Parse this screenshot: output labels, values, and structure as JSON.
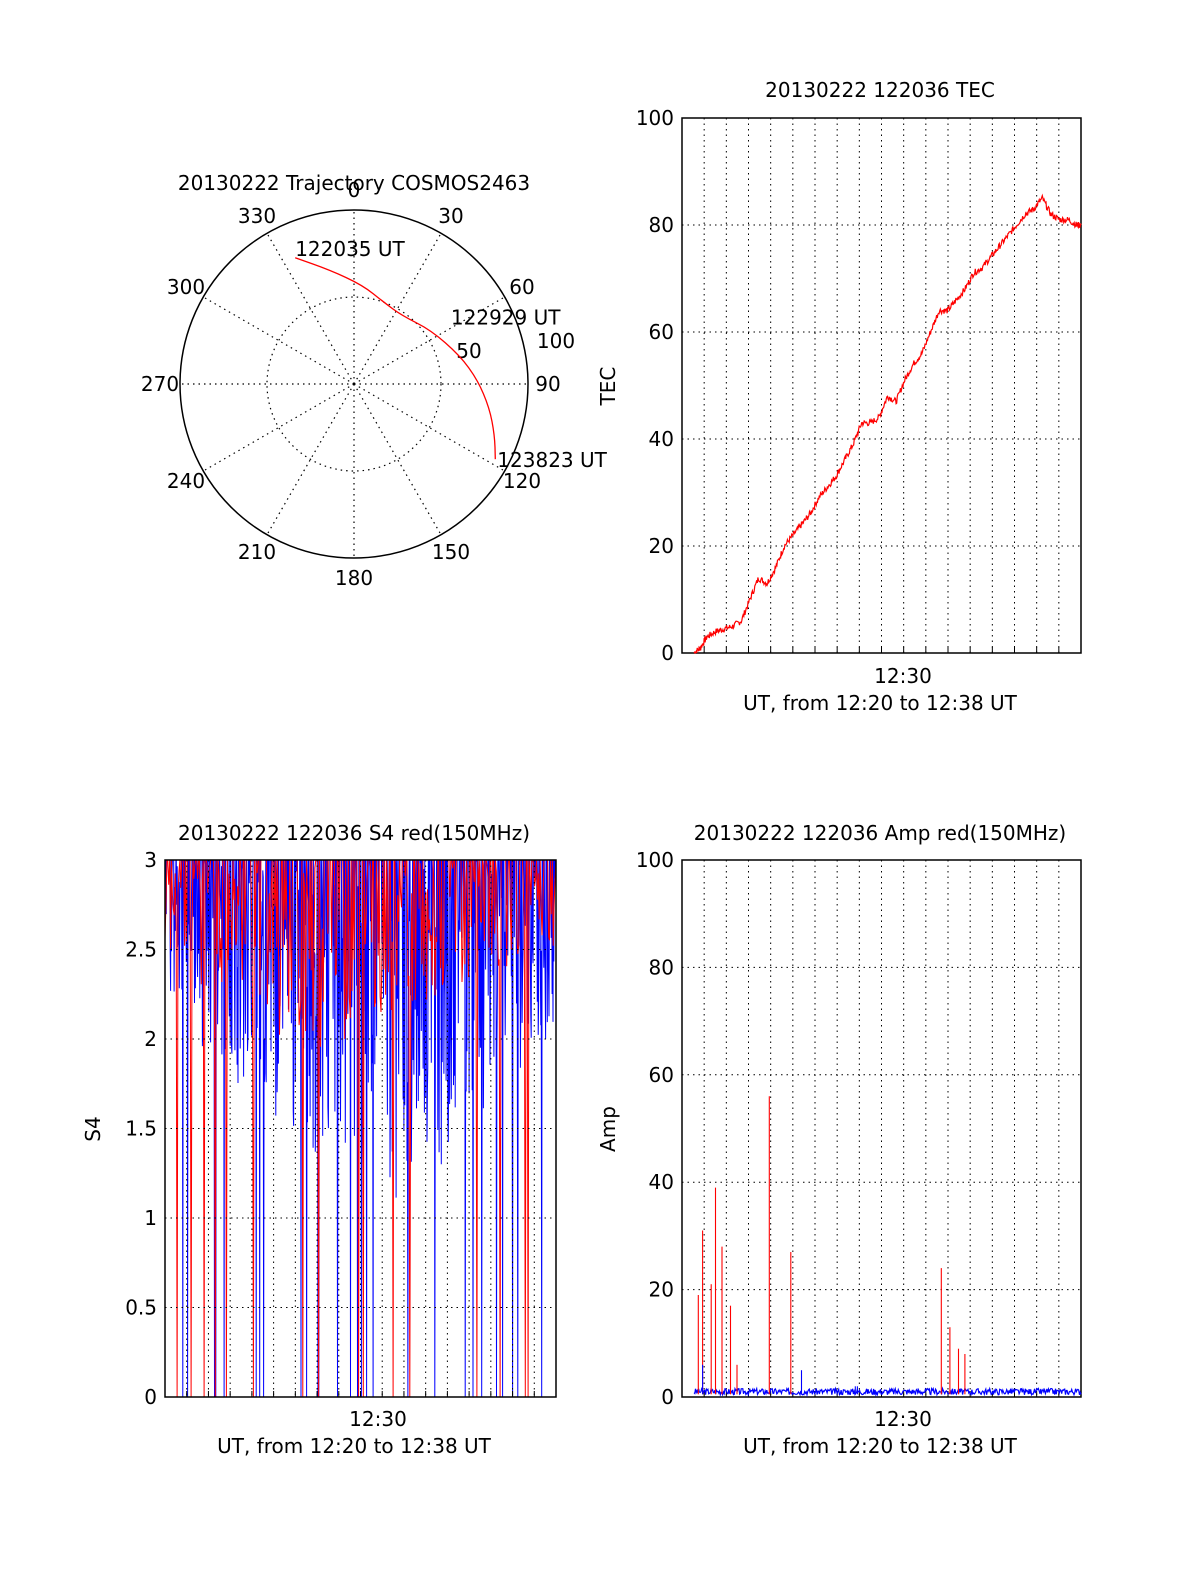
{
  "colors": {
    "red": "#ff0000",
    "blue": "#0000ff",
    "axis": "#000000",
    "grid": "#000000"
  },
  "chart_data": [
    {
      "id": "trajectory",
      "type": "polar",
      "title": "20130222 Trajectory COSMOS2463",
      "angle_labels": [
        "0",
        "30",
        "60",
        "90",
        "120",
        "150",
        "180",
        "210",
        "240",
        "270",
        "300",
        "330"
      ],
      "radial_ticks": [
        50,
        100
      ],
      "radial_labels": [
        "50",
        "100"
      ],
      "rlim": [
        0,
        100
      ],
      "grid": true,
      "series": [
        {
          "color": "red",
          "points": [
            [
              335,
              80
            ],
            [
              348,
              67
            ],
            [
              5,
              57
            ],
            [
              20,
              50
            ],
            [
              35,
              48
            ],
            [
              55,
              54
            ],
            [
              75,
              63
            ],
            [
              88,
              71
            ],
            [
              100,
              79
            ],
            [
              110,
              86
            ],
            [
              118,
              92
            ]
          ]
        }
      ],
      "annotations": [
        {
          "text": "122035 UT",
          "az": 335,
          "zen": 80
        },
        {
          "text": "122929 UT",
          "az": 60,
          "zen": 59
        },
        {
          "text": "123823 UT",
          "az": 118,
          "zen": 92
        }
      ]
    },
    {
      "id": "tec",
      "type": "line",
      "title": "20130222 122036 TEC",
      "ylabel": "TEC",
      "xlabel": "UT, from 12:20 to 12:38 UT",
      "xtick_label": "12:30",
      "ylim": [
        0,
        100
      ],
      "yticks": [
        "0",
        "20",
        "40",
        "60",
        "80",
        "100"
      ],
      "grid": true,
      "series": [
        {
          "color": "red",
          "x": [
            0.0,
            0.3,
            0.6,
            1.0,
            1.4,
            1.8,
            2.2,
            2.6,
            3.0,
            3.4,
            3.8,
            4.2,
            4.6,
            5.0,
            5.4,
            5.8,
            6.2,
            6.6,
            7.0,
            7.4,
            7.8,
            8.2,
            8.6,
            9.0,
            9.4,
            9.8,
            10.2,
            10.6,
            11.0,
            11.4,
            11.8,
            12.2,
            12.6,
            13.0,
            13.4,
            13.8,
            14.2,
            14.6,
            15.0,
            15.4,
            15.8,
            16.2,
            16.6,
            17.0,
            17.4,
            17.8,
            18.0
          ],
          "y": [
            0,
            1,
            3,
            4,
            4.5,
            5,
            6,
            10,
            14,
            13,
            16,
            20,
            22,
            24,
            26,
            29,
            31,
            33,
            36,
            39,
            43,
            43,
            44,
            48,
            47,
            51,
            54,
            56,
            60,
            64,
            64,
            66,
            68,
            71,
            72,
            74,
            76,
            78,
            80,
            82,
            83,
            85,
            82,
            81,
            81,
            80,
            80
          ]
        }
      ]
    },
    {
      "id": "s4",
      "type": "line",
      "title": "20130222 122036 S4 red(150MHz)",
      "ylabel": "S4",
      "xlabel": "UT, from 12:20 to 12:38 UT",
      "xtick_label": "12:30",
      "ylim": [
        0,
        3
      ],
      "yticks": [
        "0",
        "0.5",
        "1",
        "1.5",
        "2",
        "2.5",
        "3"
      ],
      "grid": true,
      "series": [
        {
          "color": "blue",
          "type": "dense-noise",
          "baseline": [
            2.2,
            1.9,
            1.7,
            1.5,
            1.3,
            1.2,
            1.1,
            1.3,
            1.6,
            1.8,
            2.0,
            2.2
          ]
        },
        {
          "color": "red",
          "type": "dense-noise",
          "baseline": [
            2.5,
            2.3,
            2.1,
            2.0,
            1.9,
            2.0,
            2.1,
            2.2,
            2.3,
            2.4,
            2.5,
            2.5
          ]
        }
      ]
    },
    {
      "id": "amp",
      "type": "line",
      "title": "20130222 122036 Amp red(150MHz)",
      "ylabel": "Amp",
      "xlabel": "UT, from 12:20 to 12:38 UT",
      "xtick_label": "12:30",
      "ylim": [
        0,
        100
      ],
      "yticks": [
        "0",
        "20",
        "40",
        "60",
        "80",
        "100"
      ],
      "grid": true,
      "series": [
        {
          "color": "red",
          "x": [
            0.2,
            0.4,
            0.8,
            1.0,
            1.3,
            1.7,
            2.0,
            3.5,
            4.5,
            11.5,
            11.9,
            12.3,
            12.6
          ],
          "y": [
            19,
            31,
            21,
            39,
            28,
            17,
            6,
            56,
            27,
            24,
            13,
            9,
            8
          ]
        },
        {
          "color": "blue",
          "x": [
            0.4,
            5.0,
            7.5,
            7.6
          ],
          "y": [
            6,
            5,
            2,
            2
          ]
        }
      ]
    }
  ]
}
